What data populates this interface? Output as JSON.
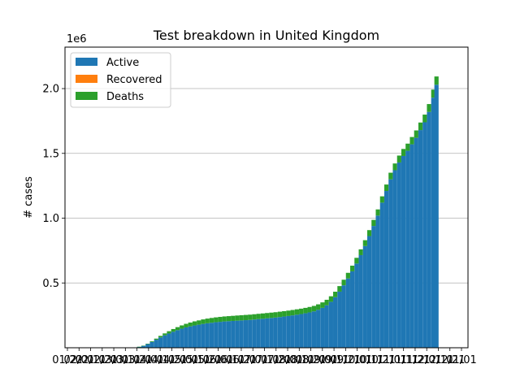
{
  "chart_data": {
    "type": "bar",
    "stacked": true,
    "title": "Test breakdown in United Kingdom",
    "ylabel": "# cases",
    "xlabel": "",
    "y_multiplier_label": "1e6",
    "ylim": [
      0,
      2320000
    ],
    "yticks": [
      {
        "value": 500000,
        "label": "0.5"
      },
      {
        "value": 1000000,
        "label": "1.0"
      },
      {
        "value": 1500000,
        "label": "1.5"
      },
      {
        "value": 2000000,
        "label": "2.0"
      }
    ],
    "grid": "y",
    "legend_position": "upper-left",
    "xtick_labels": [
      "01/22",
      "02/01",
      "02/11",
      "02/21",
      "03/01",
      "03/11",
      "03/21",
      "04/01",
      "04/11",
      "04/21",
      "05/01",
      "05/11",
      "05/21",
      "06/01",
      "06/11",
      "06/21",
      "07/01",
      "07/11",
      "07/21",
      "08/01",
      "08/11",
      "08/21",
      "09/01",
      "09/11",
      "09/21",
      "10/01",
      "10/11",
      "10/21",
      "11/01",
      "11/11",
      "11/21",
      "12/01",
      "12/11",
      "12/21",
      "01/01"
    ],
    "dates": [
      "2020-01-22",
      "2020-01-30",
      "2020-02-07",
      "2020-02-15",
      "2020-02-23",
      "2020-03-02",
      "2020-03-10",
      "2020-03-18",
      "2020-03-24",
      "2020-03-28",
      "2020-04-01",
      "2020-04-05",
      "2020-04-09",
      "2020-04-13",
      "2020-04-17",
      "2020-04-21",
      "2020-04-25",
      "2020-04-29",
      "2020-05-03",
      "2020-05-07",
      "2020-05-11",
      "2020-05-15",
      "2020-05-19",
      "2020-05-23",
      "2020-05-27",
      "2020-05-31",
      "2020-06-04",
      "2020-06-08",
      "2020-06-12",
      "2020-06-16",
      "2020-06-20",
      "2020-06-24",
      "2020-06-28",
      "2020-07-02",
      "2020-07-06",
      "2020-07-10",
      "2020-07-14",
      "2020-07-18",
      "2020-07-22",
      "2020-07-26",
      "2020-07-30",
      "2020-08-03",
      "2020-08-07",
      "2020-08-11",
      "2020-08-15",
      "2020-08-19",
      "2020-08-23",
      "2020-08-27",
      "2020-08-31",
      "2020-09-04",
      "2020-09-08",
      "2020-09-12",
      "2020-09-16",
      "2020-09-20",
      "2020-09-24",
      "2020-09-28",
      "2020-10-02",
      "2020-10-06",
      "2020-10-10",
      "2020-10-14",
      "2020-10-18",
      "2020-10-22",
      "2020-10-26",
      "2020-10-30",
      "2020-11-03",
      "2020-11-07",
      "2020-11-11",
      "2020-11-15",
      "2020-11-19",
      "2020-11-23",
      "2020-11-27",
      "2020-12-01",
      "2020-12-05",
      "2020-12-09",
      "2020-12-13",
      "2020-12-17",
      "2020-12-21",
      "2020-12-25",
      "2020-12-28"
    ],
    "series": [
      {
        "name": "Active",
        "color": "#1f77b4",
        "values": [
          0,
          0,
          0,
          0,
          10,
          40,
          300,
          2500,
          7000,
          15000,
          28000,
          45000,
          62000,
          80000,
          96000,
          110000,
          124000,
          136000,
          147000,
          157000,
          165000,
          172000,
          178000,
          184000,
          189000,
          193000,
          197000,
          200000,
          203000,
          205000,
          207000,
          209000,
          211000,
          213000,
          215000,
          218000,
          221000,
          224000,
          227000,
          230000,
          233000,
          237000,
          241000,
          245000,
          250000,
          255000,
          260000,
          266000,
          273000,
          281000,
          293000,
          308000,
          328000,
          355000,
          390000,
          433000,
          482000,
          535000,
          590000,
          650000,
          715000,
          785000,
          862000,
          940000,
          1020000,
          1120000,
          1210000,
          1300000,
          1370000,
          1430000,
          1480000,
          1520000,
          1570000,
          1620000,
          1680000,
          1740000,
          1820000,
          1930000,
          2030000
        ]
      },
      {
        "name": "Recovered",
        "color": "#ff7f0e",
        "values": [
          0,
          0,
          0,
          0,
          0,
          0,
          0,
          0,
          0,
          0,
          0,
          0,
          0,
          0,
          0,
          0,
          0,
          0,
          0,
          0,
          0,
          0,
          0,
          0,
          0,
          0,
          0,
          0,
          0,
          0,
          0,
          0,
          0,
          0,
          0,
          0,
          0,
          0,
          0,
          0,
          0,
          0,
          0,
          0,
          0,
          0,
          0,
          0,
          0,
          0,
          0,
          0,
          0,
          0,
          0,
          0,
          0,
          0,
          0,
          0,
          0,
          0,
          0,
          0,
          0,
          0,
          0,
          0,
          0,
          0,
          0,
          0,
          0,
          0,
          0,
          0,
          0,
          0,
          0
        ]
      },
      {
        "name": "Deaths",
        "color": "#2ca02c",
        "values": [
          0,
          0,
          0,
          0,
          0,
          2,
          20,
          200,
          600,
          1500,
          3300,
          5600,
          8500,
          11600,
          14800,
          17800,
          20600,
          23000,
          25500,
          27700,
          29600,
          31700,
          33100,
          34700,
          35900,
          36900,
          37500,
          38100,
          38600,
          39000,
          39400,
          39800,
          40000,
          40300,
          40500,
          40700,
          40900,
          41000,
          41100,
          41200,
          41300,
          41400,
          41500,
          41600,
          41600,
          41700,
          41800,
          41900,
          41900,
          42000,
          42000,
          42100,
          42200,
          42300,
          42500,
          42800,
          43000,
          43300,
          43600,
          44000,
          44500,
          45100,
          45800,
          46700,
          47600,
          48600,
          49700,
          50900,
          52100,
          53200,
          54300,
          55300,
          56300,
          57200,
          58200,
          59300,
          60700,
          62300,
          63600
        ]
      }
    ]
  }
}
